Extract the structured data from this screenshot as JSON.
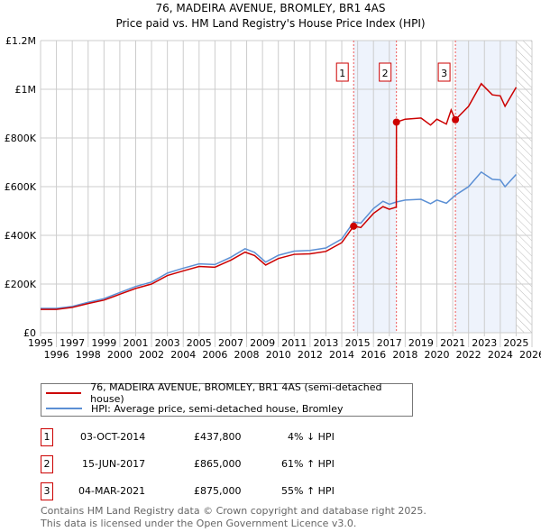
{
  "chart_data": {
    "type": "line",
    "title": "76, MADEIRA AVENUE, BROMLEY, BR1 4AS",
    "subtitle": "Price paid vs. HM Land Registry's House Price Index (HPI)",
    "xlim": [
      1995,
      2026
    ],
    "ylim": [
      0,
      1200000
    ],
    "y_ticks": [
      {
        "v": 0,
        "label": "£0"
      },
      {
        "v": 200000,
        "label": "£200K"
      },
      {
        "v": 400000,
        "label": "£400K"
      },
      {
        "v": 600000,
        "label": "£600K"
      },
      {
        "v": 800000,
        "label": "£800K"
      },
      {
        "v": 1000000,
        "label": "£1M"
      },
      {
        "v": 1200000,
        "label": "£1.2M"
      }
    ],
    "x_ticks": [
      "1995",
      "1996",
      "1997",
      "1998",
      "1999",
      "2000",
      "2001",
      "2002",
      "2003",
      "2004",
      "2005",
      "2006",
      "2007",
      "2008",
      "2009",
      "2010",
      "2011",
      "2012",
      "2013",
      "2014",
      "2015",
      "2016",
      "2017",
      "2018",
      "2019",
      "2020",
      "2021",
      "2022",
      "2023",
      "2024",
      "2025",
      "2026"
    ],
    "grid": true,
    "series": [
      {
        "name": "76, MADEIRA AVENUE, BROMLEY, BR1 4AS (semi-detached house)",
        "color": "#cc0000",
        "x": [
          1995,
          1996,
          1997,
          1998,
          1999,
          2000,
          2001,
          2002,
          2003,
          2004,
          2005,
          2006,
          2007,
          2007.9,
          2008.5,
          2009.2,
          2010,
          2011,
          2012,
          2013,
          2014,
          2014.75,
          2015.2,
          2016,
          2016.6,
          2017,
          2017.44,
          2017.45,
          2018,
          2019,
          2019.6,
          2020,
          2020.6,
          2020.9,
          2021.17,
          2022,
          2022.8,
          2023.5,
          2024,
          2024.3,
          2025
        ],
        "y": [
          96000,
          96000,
          104000,
          120000,
          134000,
          158000,
          182000,
          200000,
          235000,
          254000,
          272000,
          269000,
          298000,
          331000,
          317000,
          278000,
          305000,
          322000,
          324000,
          334000,
          370000,
          437800,
          432000,
          490000,
          518000,
          507000,
          516000,
          865000,
          877000,
          882000,
          853000,
          877000,
          857000,
          915000,
          875000,
          930000,
          1023000,
          977000,
          973000,
          930000,
          1008000
        ]
      },
      {
        "name": "HPI: Average price, semi-detached house, Bromley",
        "color": "#5b8fd4",
        "x": [
          1995,
          1996,
          1997,
          1998,
          1999,
          2000,
          2001,
          2002,
          2003,
          2004,
          2005,
          2006,
          2007,
          2007.9,
          2008.5,
          2009.2,
          2010,
          2011,
          2012,
          2013,
          2014,
          2014.75,
          2015.2,
          2016,
          2016.6,
          2017,
          2017.45,
          2018,
          2019,
          2019.6,
          2020,
          2020.6,
          2021.17,
          2022,
          2022.8,
          2023.5,
          2024,
          2024.3,
          2025
        ],
        "y": [
          100000,
          100000,
          108000,
          125000,
          140000,
          165000,
          190000,
          208000,
          245000,
          265000,
          283000,
          280000,
          310000,
          345000,
          330000,
          290000,
          318000,
          335000,
          338000,
          348000,
          385000,
          455000,
          450000,
          510000,
          540000,
          528000,
          537000,
          545000,
          548000,
          530000,
          545000,
          532000,
          565000,
          600000,
          660000,
          630000,
          628000,
          600000,
          650000
        ]
      }
    ],
    "sales": [
      {
        "id": "1",
        "x": 2014.75,
        "price": 437800,
        "date": "03-OCT-2014",
        "price_label": "£437,800",
        "hpi": "4% ↓ HPI"
      },
      {
        "id": "2",
        "x": 2017.45,
        "price": 865000,
        "date": "15-JUN-2017",
        "price_label": "£865,000",
        "hpi": "61% ↑ HPI"
      },
      {
        "id": "3",
        "x": 2021.17,
        "price": 875000,
        "date": "04-MAR-2021",
        "price_label": "£875,000",
        "hpi": "55% ↑ HPI"
      }
    ],
    "forecast_from": 2025.0,
    "legend_placement": "below"
  },
  "footer": {
    "line1": "Contains HM Land Registry data © Crown copyright and database right 2025.",
    "line2": "This data is licensed under the Open Government Licence v3.0."
  }
}
